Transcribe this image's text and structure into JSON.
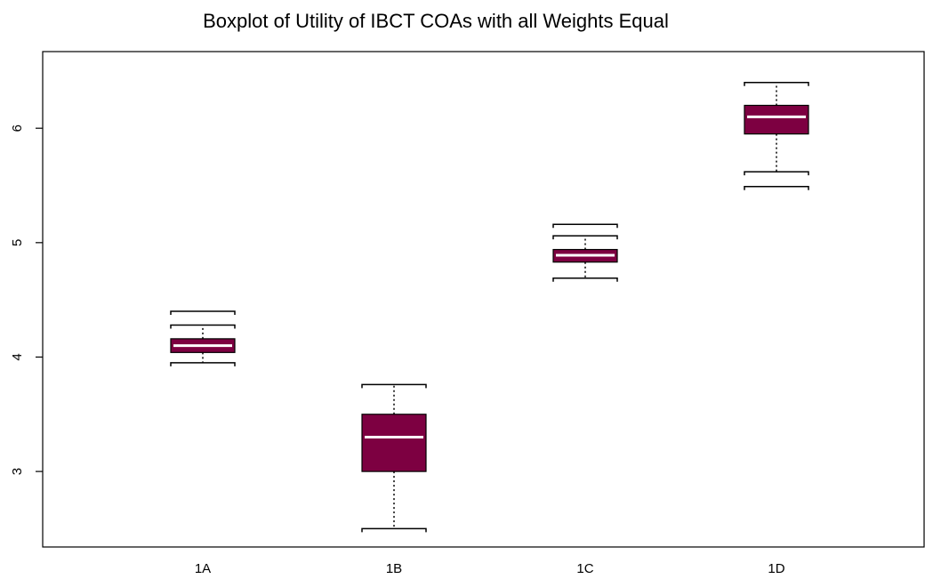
{
  "chart_data": {
    "type": "box",
    "title": "Boxplot of Utility of IBCT COAs with all Weights Equal",
    "categories": [
      "1A",
      "1B",
      "1C",
      "1D"
    ],
    "whisker_low": [
      3.95,
      2.5,
      4.69,
      5.62
    ],
    "q1": [
      4.04,
      3.0,
      4.83,
      5.95
    ],
    "median": [
      4.1,
      3.3,
      4.89,
      6.1
    ],
    "q3": [
      4.16,
      3.5,
      4.94,
      6.2
    ],
    "whisker_high": [
      4.28,
      3.76,
      5.06,
      6.4
    ],
    "outliers": [
      [
        4.4
      ],
      [],
      [
        5.16
      ],
      [
        5.49
      ]
    ],
    "color": "#7d0041",
    "ylim": [
      2.34,
      6.67
    ],
    "yticks": [
      3,
      4,
      5,
      6
    ]
  }
}
